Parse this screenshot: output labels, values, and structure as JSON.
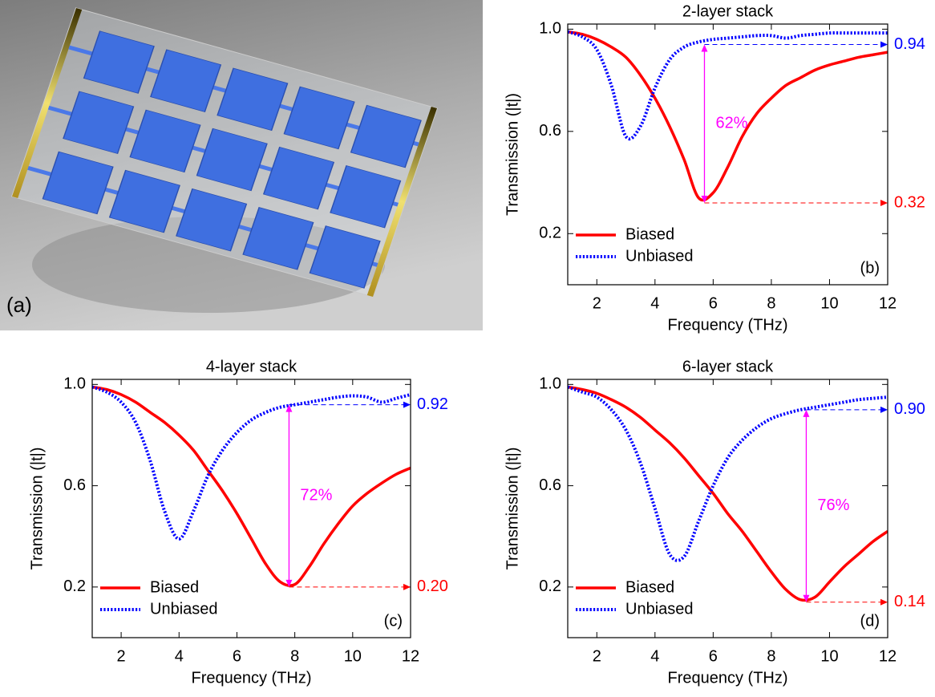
{
  "image_panel": {
    "label": "(a)"
  },
  "chart_data": [
    {
      "type": "line",
      "title": "2-layer stack",
      "xlabel": "Frequency (THz)",
      "ylabel": "Transmission (|t|)",
      "panel_label": "(b)",
      "xlim": [
        1,
        12
      ],
      "ylim": [
        0,
        1.02
      ],
      "xticks": [
        2,
        4,
        6,
        8,
        10,
        12
      ],
      "yticks": [
        {
          "value": 1.0,
          "label": "1.0"
        },
        0.6,
        0.2
      ],
      "legend": "lower left",
      "x": [
        1,
        1.5,
        2,
        2.5,
        3,
        3.5,
        4,
        4.5,
        5,
        5.5,
        6,
        6.5,
        7,
        7.5,
        8,
        8.5,
        9,
        9.5,
        10,
        10.5,
        11,
        11.5,
        12
      ],
      "series": [
        {
          "name": "Biased",
          "color": "#ff0000",
          "style": "solid",
          "values": [
            0.99,
            0.98,
            0.96,
            0.93,
            0.89,
            0.82,
            0.73,
            0.62,
            0.49,
            0.34,
            0.36,
            0.46,
            0.58,
            0.67,
            0.73,
            0.78,
            0.81,
            0.84,
            0.86,
            0.875,
            0.89,
            0.9,
            0.91
          ]
        },
        {
          "name": "Unbiased",
          "color": "#0000ff",
          "style": "dotted",
          "values": [
            0.99,
            0.97,
            0.92,
            0.78,
            0.58,
            0.62,
            0.77,
            0.88,
            0.93,
            0.95,
            0.96,
            0.965,
            0.97,
            0.975,
            0.975,
            0.965,
            0.975,
            0.98,
            0.985,
            0.985,
            0.985,
            0.985,
            0.985
          ]
        }
      ],
      "contrast": {
        "x": 5.7,
        "unbiased": 0.94,
        "biased": 0.32,
        "value": 62,
        "label": "62%",
        "color": "#ff00ff"
      }
    },
    {
      "type": "line",
      "title": "4-layer stack",
      "xlabel": "Frequency (THz)",
      "ylabel": "Transmission (|t|)",
      "panel_label": "(c)",
      "xlim": [
        1,
        12
      ],
      "ylim": [
        0,
        1.02
      ],
      "xticks": [
        2,
        4,
        6,
        8,
        10,
        12
      ],
      "yticks": [
        {
          "value": 1.0,
          "label": "1.0"
        },
        0.6,
        0.2
      ],
      "legend": "lower left",
      "x": [
        1,
        1.5,
        2,
        2.5,
        3,
        3.5,
        4,
        4.5,
        5,
        5.5,
        6,
        6.5,
        7,
        7.5,
        8,
        8.5,
        9,
        9.5,
        10,
        10.5,
        11,
        11.5,
        12
      ],
      "series": [
        {
          "name": "Biased",
          "color": "#ff0000",
          "style": "solid",
          "values": [
            0.99,
            0.98,
            0.96,
            0.93,
            0.89,
            0.85,
            0.8,
            0.74,
            0.66,
            0.58,
            0.49,
            0.39,
            0.29,
            0.22,
            0.21,
            0.28,
            0.37,
            0.45,
            0.52,
            0.57,
            0.61,
            0.645,
            0.67
          ]
        },
        {
          "name": "Unbiased",
          "color": "#0000ff",
          "style": "dotted",
          "values": [
            0.99,
            0.97,
            0.93,
            0.85,
            0.7,
            0.5,
            0.39,
            0.5,
            0.64,
            0.74,
            0.81,
            0.86,
            0.89,
            0.91,
            0.92,
            0.93,
            0.94,
            0.95,
            0.955,
            0.95,
            0.93,
            0.945,
            0.96
          ]
        }
      ],
      "contrast": {
        "x": 7.8,
        "unbiased": 0.92,
        "biased": {
          "value": 0.2,
          "label": "0.20"
        },
        "value": 72,
        "label": "72%",
        "color": "#ff00ff"
      }
    },
    {
      "type": "line",
      "title": "6-layer stack",
      "xlabel": "Frequency (THz)",
      "ylabel": "Transmission (|t|)",
      "panel_label": "(d)",
      "xlim": [
        1,
        12
      ],
      "ylim": [
        0,
        1.02
      ],
      "xticks": [
        2,
        4,
        6,
        8,
        10,
        12
      ],
      "yticks": [
        {
          "value": 1.0,
          "label": "1.0"
        },
        0.6,
        0.2
      ],
      "legend": "lower left",
      "x": [
        1,
        1.5,
        2,
        2.5,
        3,
        3.5,
        4,
        4.5,
        5,
        5.5,
        6,
        6.5,
        7,
        7.5,
        8,
        8.5,
        9,
        9.5,
        10,
        10.5,
        11,
        11.5,
        12
      ],
      "series": [
        {
          "name": "Biased",
          "color": "#ff0000",
          "style": "solid",
          "values": [
            0.99,
            0.98,
            0.965,
            0.94,
            0.91,
            0.87,
            0.82,
            0.77,
            0.71,
            0.64,
            0.57,
            0.49,
            0.42,
            0.34,
            0.26,
            0.19,
            0.15,
            0.16,
            0.22,
            0.28,
            0.33,
            0.38,
            0.42
          ]
        },
        {
          "name": "Unbiased",
          "color": "#0000ff",
          "style": "dotted",
          "values": [
            0.99,
            0.97,
            0.95,
            0.9,
            0.82,
            0.69,
            0.51,
            0.33,
            0.32,
            0.46,
            0.6,
            0.71,
            0.78,
            0.83,
            0.865,
            0.885,
            0.9,
            0.91,
            0.92,
            0.93,
            0.94,
            0.945,
            0.95
          ]
        }
      ],
      "contrast": {
        "x": 9.2,
        "unbiased": {
          "value": 0.9,
          "label": "0.90"
        },
        "biased": 0.14,
        "value": 76,
        "label": "76%",
        "color": "#ff00ff"
      }
    }
  ]
}
